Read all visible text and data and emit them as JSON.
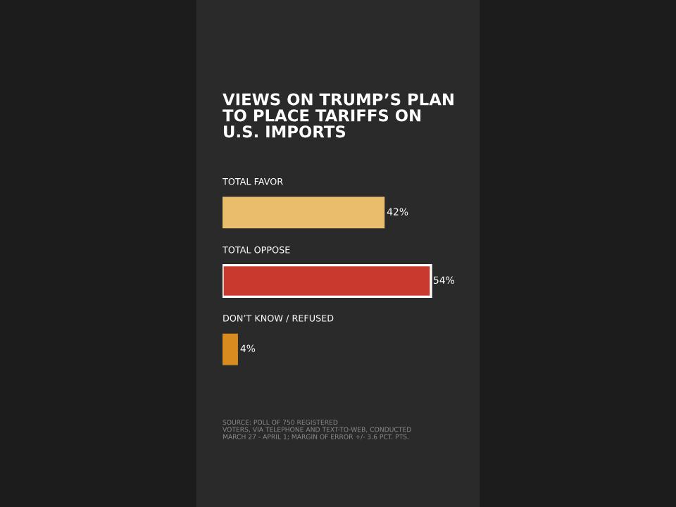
{
  "chart_data": {
    "type": "bar",
    "orientation": "horizontal",
    "title": "VIEWS ON TRUMP’S PLAN\nTO PLACE TARIFFS ON\nU.S. IMPORTS",
    "categories": [
      "TOTAL FAVOR",
      "TOTAL OPPOSE",
      "DON’T KNOW / REFUSED"
    ],
    "values": [
      42,
      54,
      4
    ],
    "colors": [
      "#e9bd6c",
      "#c9392e",
      "#d88b1e"
    ],
    "value_labels": [
      "42%",
      "54%",
      "4%"
    ],
    "annotations": [
      "SOURCE: POLL OF 750 REGISTERED\nVOTERS, VIA TELEPHONE AND TEXT-TO-WEB, CONDUCTED\nMARCH 27 - APRIL 1; MARGIN OF ERROR +/- 3.6 PCT. PTS."
    ]
  }
}
